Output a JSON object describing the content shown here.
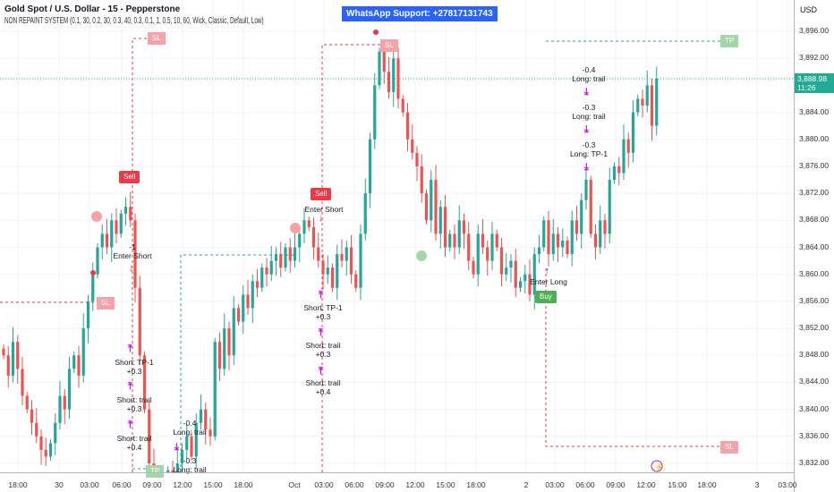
{
  "header": {
    "title": "Gold Spot / U.S. Dollar - 15 - Pepperstone",
    "indicator": "NON REPAINT SYSTEM (0.1, 30, 0.2, 30, 0.3, 40, 0.3, 0.1, 1, 0.5, 10, 60, Wick, Classic, Default, Low)"
  },
  "whatsapp": "WhatsApp Support: +27817131743",
  "price_axis": {
    "currency": "USD",
    "labels": [
      "3,896.00",
      "3,892.00",
      "3,884.00",
      "3,880.00",
      "3,876.00",
      "3,872.00",
      "3,868.00",
      "3,864.00",
      "3,860.00",
      "3,856.00",
      "3,852.00",
      "3,848.00",
      "3,844.00",
      "3,840.00",
      "3,836.00",
      "3,832.00"
    ],
    "current_price": "3,888.98",
    "countdown": "11:26"
  },
  "time_axis": [
    "18:00",
    "30",
    "03:00",
    "06:00",
    "09:00",
    "12:00",
    "15:00",
    "18:00",
    "Oct",
    "03:00",
    "06:00",
    "09:00",
    "12:00",
    "15:00",
    "18:00",
    "2",
    "03:00",
    "06:00",
    "09:00",
    "12:00",
    "15:00",
    "18:00",
    "3",
    "03:00"
  ],
  "colors": {
    "up": "#26a69a",
    "down": "#ef5350",
    "signal": "#d500f9",
    "sell": "#f23645",
    "buy": "#4caf50",
    "tp": "#a5d6a7",
    "sl": "#f7a1a8"
  },
  "labels": {
    "sell": "Sell",
    "buy": "Buy",
    "tp": "TP",
    "sl": "SL",
    "enter_short": "Enter Short",
    "enter_long": "Enter Long",
    "minus1": "-1",
    "short_tp1": "Short: TP-1",
    "short_trail": "Short: trail",
    "long_trail": "Long: trail",
    "long_tp1": "Long: TP-1",
    "p03": "+0.3",
    "p04": "+0.4",
    "m04": "-0.4",
    "m03": "-0.3"
  },
  "chart_data": {
    "type": "candlestick",
    "symbol": "XAUUSD",
    "timeframe": "15",
    "ylim": [
      3830,
      3898
    ],
    "closes": [
      3848,
      3845,
      3850,
      3846,
      3842,
      3840,
      3838,
      3836,
      3834,
      3833,
      3835,
      3838,
      3842,
      3840,
      3846,
      3848,
      3845,
      3852,
      3856,
      3860,
      3864,
      3866,
      3864,
      3868,
      3866,
      3869,
      3870,
      3868,
      3858,
      3848,
      3840,
      3832,
      3830,
      3829,
      3830,
      3831,
      3830,
      3832,
      3834,
      3836,
      3833,
      3838,
      3840,
      3837,
      3836,
      3850,
      3846,
      3852,
      3848,
      3855,
      3853,
      3857,
      3855,
      3859,
      3858,
      3861,
      3860,
      3862,
      3863,
      3861,
      3864,
      3862,
      3864,
      3866,
      3868,
      3867,
      3864,
      3862,
      3860,
      3861,
      3858,
      3863,
      3862,
      3864,
      3860,
      3858,
      3866,
      3872,
      3880,
      3888,
      3893,
      3890,
      3887,
      3892,
      3886,
      3884,
      3880,
      3878,
      3876,
      3872,
      3868,
      3874,
      3866,
      3870,
      3864,
      3866,
      3864,
      3868,
      3866,
      3862,
      3860,
      3866,
      3864,
      3862,
      3866,
      3864,
      3860,
      3861,
      3862,
      3858,
      3859,
      3860,
      3857,
      3863,
      3864,
      3868,
      3863,
      3866,
      3864,
      3865,
      3863,
      3868,
      3866,
      3871,
      3874,
      3866,
      3864,
      3868,
      3866,
      3874,
      3876,
      3875,
      3880,
      3878,
      3884,
      3886,
      3885,
      3888,
      3882,
      3888.98
    ]
  }
}
